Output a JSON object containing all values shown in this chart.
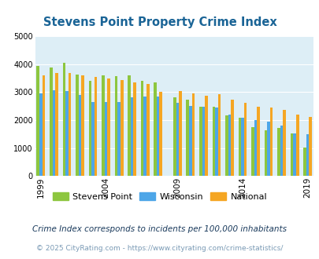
{
  "title": "Stevens Point Property Crime Index",
  "title_color": "#1a6496",
  "years": [
    1999,
    2000,
    2001,
    2002,
    2003,
    2004,
    2005,
    2006,
    2007,
    2008,
    2009,
    2010,
    2011,
    2012,
    2013,
    2014,
    2015,
    2016,
    2017,
    2018,
    2019
  ],
  "stevens_point": [
    3950,
    3880,
    4060,
    3640,
    3400,
    3600,
    3570,
    3610,
    3420,
    3360,
    2820,
    2740,
    2490,
    2480,
    2170,
    2100,
    1760,
    1630,
    1730,
    1530,
    1020
  ],
  "wisconsin": [
    2970,
    3080,
    3040,
    2910,
    2650,
    2660,
    2660,
    2820,
    2850,
    2850,
    2620,
    2510,
    2480,
    2460,
    2190,
    2090,
    1990,
    1960,
    1820,
    1530,
    1490
  ],
  "national": [
    3590,
    3680,
    3680,
    3600,
    3540,
    3490,
    3430,
    3340,
    3290,
    3010,
    3050,
    2960,
    2880,
    2940,
    2740,
    2630,
    2490,
    2460,
    2360,
    2200,
    2110
  ],
  "stevens_point_color": "#8dc63f",
  "wisconsin_color": "#4da6e8",
  "national_color": "#f5a623",
  "plot_bg": "#ddeef6",
  "ylim": [
    0,
    5000
  ],
  "yticks": [
    0,
    1000,
    2000,
    3000,
    4000,
    5000
  ],
  "xlabel_tick_years": [
    1999,
    2004,
    2009,
    2014,
    2019
  ],
  "legend_labels": [
    "Stevens Point",
    "Wisconsin",
    "National"
  ],
  "footnote1": "Crime Index corresponds to incidents per 100,000 inhabitants",
  "footnote2": "© 2025 CityRating.com - https://www.cityrating.com/crime-statistics/",
  "footnote1_color": "#1a3a5c",
  "footnote2_color": "#7a9ab5"
}
